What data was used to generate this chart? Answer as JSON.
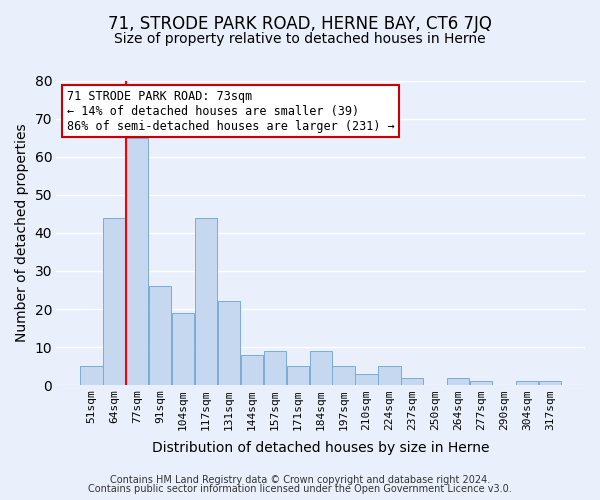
{
  "title": "71, STRODE PARK ROAD, HERNE BAY, CT6 7JQ",
  "subtitle": "Size of property relative to detached houses in Herne",
  "xlabel": "Distribution of detached houses by size in Herne",
  "ylabel": "Number of detached properties",
  "footer_line1": "Contains HM Land Registry data © Crown copyright and database right 2024.",
  "footer_line2": "Contains public sector information licensed under the Open Government Licence v3.0.",
  "annotation_line1": "71 STRODE PARK ROAD: 73sqm",
  "annotation_line2": "← 14% of detached houses are smaller (39)",
  "annotation_line3": "86% of semi-detached houses are larger (231) →",
  "bar_labels": [
    "51sqm",
    "64sqm",
    "77sqm",
    "91sqm",
    "104sqm",
    "117sqm",
    "131sqm",
    "144sqm",
    "157sqm",
    "171sqm",
    "184sqm",
    "197sqm",
    "210sqm",
    "224sqm",
    "237sqm",
    "250sqm",
    "264sqm",
    "277sqm",
    "290sqm",
    "304sqm",
    "317sqm"
  ],
  "bar_values": [
    5,
    44,
    65,
    26,
    19,
    44,
    22,
    8,
    9,
    5,
    9,
    5,
    3,
    5,
    2,
    0,
    2,
    1,
    0,
    1,
    1
  ],
  "bar_color": "#c5d8f0",
  "bar_edge_color": "#7aadd4",
  "background_color": "#eaf0fb",
  "grid_color": "#ffffff",
  "annotation_box_edge_color": "#cc0000",
  "red_line_x": 1.5,
  "ylim": [
    0,
    80
  ],
  "yticks": [
    0,
    10,
    20,
    30,
    40,
    50,
    60,
    70,
    80
  ],
  "title_fontsize": 12,
  "subtitle_fontsize": 10,
  "axis_label_fontsize": 10,
  "tick_fontsize": 8,
  "annotation_fontsize": 8.5,
  "footer_fontsize": 7
}
